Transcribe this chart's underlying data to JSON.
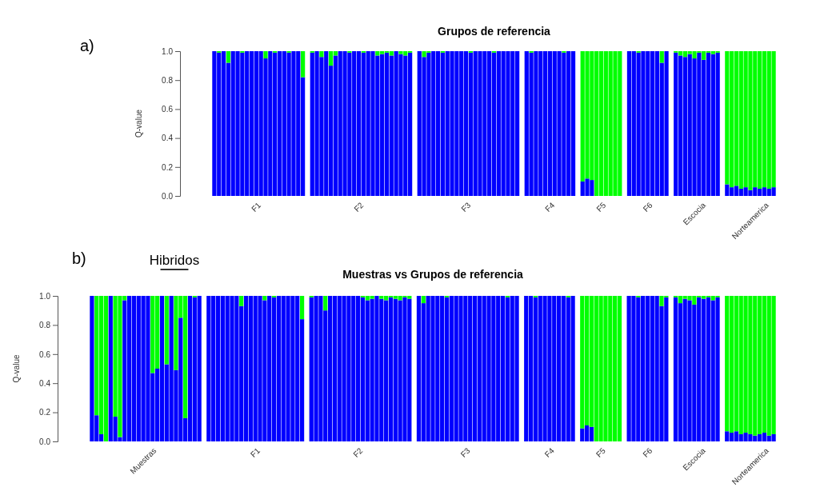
{
  "chart_data": [
    {
      "type": "bar",
      "stacked": true,
      "title": "Grupos de referencia",
      "ylabel": "Q-value",
      "annotations": [
        "a)"
      ],
      "ylim": [
        0,
        1
      ],
      "yticks": [
        {
          "value": 0,
          "label": "0.0"
        },
        {
          "value": 0.2,
          "label": "0.2"
        },
        {
          "value": 0.4,
          "label": "0.4"
        },
        {
          "value": 0.6,
          "label": "0.6"
        },
        {
          "value": 0.8,
          "label": "0.8"
        },
        {
          "value": 1,
          "label": "1.0"
        }
      ],
      "categories": [
        null,
        null,
        null,
        null,
        null,
        null,
        null,
        null,
        null,
        "F1",
        null,
        null,
        null,
        null,
        null,
        null,
        null,
        null,
        null,
        null,
        null,
        null,
        null,
        null,
        null,
        null,
        null,
        null,
        null,
        null,
        null,
        "F2",
        null,
        null,
        null,
        null,
        null,
        null,
        null,
        null,
        null,
        null,
        null,
        null,
        null,
        null,
        null,
        null,
        null,
        null,
        null,
        null,
        null,
        null,
        "F3",
        null,
        null,
        null,
        null,
        null,
        null,
        null,
        null,
        null,
        null,
        null,
        null,
        null,
        null,
        null,
        null,
        null,
        "F4",
        null,
        null,
        null,
        null,
        null,
        null,
        null,
        null,
        null,
        null,
        "F5",
        null,
        null,
        null,
        null,
        null,
        null,
        null,
        null,
        null,
        "F6",
        null,
        null,
        null,
        null,
        null,
        null,
        null,
        null,
        null,
        "Escocia",
        null,
        null,
        null,
        null,
        null,
        null,
        null,
        null,
        null,
        null,
        null,
        "Norteamerica",
        null,
        null,
        null,
        null,
        null
      ],
      "series": [
        {
          "color": "#0000ff",
          "values": [
            1,
            0.99,
            1,
            0.92,
            1,
            1,
            0.99,
            1,
            1,
            1,
            1,
            0.95,
            1,
            0.99,
            1,
            1,
            0.99,
            1,
            1,
            0.82,
            null,
            0.99,
            1,
            0.96,
            1,
            0.9,
            0.97,
            1,
            1,
            0.99,
            1,
            1,
            0.99,
            1,
            1,
            0.97,
            0.98,
            0.99,
            0.97,
            1,
            0.98,
            0.97,
            0.99,
            null,
            1,
            0.96,
            0.99,
            1,
            1,
            0.99,
            1,
            1,
            1,
            1,
            1,
            0.99,
            1,
            1,
            1,
            1,
            0.99,
            1,
            1,
            1,
            1,
            1,
            null,
            1,
            0.99,
            1,
            1,
            1,
            1,
            1,
            1,
            0.99,
            1,
            1,
            null,
            0.1,
            0.12,
            0.11,
            0,
            0,
            0,
            0,
            0,
            0,
            null,
            1,
            1,
            0.99,
            1,
            1,
            1,
            1,
            0.92,
            1,
            null,
            0.99,
            0.97,
            0.96,
            0.98,
            0.95,
            0.99,
            0.94,
            0.99,
            0.98,
            0.99,
            null,
            0.08,
            0.06,
            0.07,
            0.05,
            0.06,
            0.04,
            0.06,
            0.05,
            0.06,
            0.05,
            0.06
          ]
        },
        {
          "color": "#00ff00",
          "values": [
            0,
            0.01,
            0,
            0.08,
            0,
            0,
            0.01,
            0,
            0,
            0,
            0,
            0.05,
            0,
            0.01,
            0,
            0,
            0.01,
            0,
            0,
            0.18,
            null,
            0.01,
            0,
            0.04,
            0,
            0.1,
            0.03,
            0,
            0,
            0.01,
            0,
            0,
            0.01,
            0,
            0,
            0.03,
            0.02,
            0.01,
            0.03,
            0,
            0.02,
            0.03,
            0.01,
            null,
            0,
            0.04,
            0.01,
            0,
            0,
            0.01,
            0,
            0,
            0,
            0,
            0,
            0.01,
            0,
            0,
            0,
            0,
            0.01,
            0,
            0,
            0,
            0,
            0,
            null,
            0,
            0.01,
            0,
            0,
            0,
            0,
            0,
            0,
            0.01,
            0,
            0,
            null,
            0.9,
            0.88,
            0.89,
            1,
            1,
            1,
            1,
            1,
            1,
            null,
            0,
            0,
            0.01,
            0,
            0,
            0,
            0,
            0.08,
            0,
            null,
            0.01,
            0.03,
            0.04,
            0.02,
            0.05,
            0.01,
            0.06,
            0.01,
            0.02,
            0.01,
            null,
            0.92,
            0.94,
            0.93,
            0.95,
            0.94,
            0.96,
            0.94,
            0.95,
            0.94,
            0.95,
            0.94
          ]
        }
      ]
    },
    {
      "type": "bar",
      "stacked": true,
      "title": "Muestras vs Grupos de referencia",
      "ylabel": "Q-value",
      "annotations": [
        "b)",
        "Hibridos"
      ],
      "ylim": [
        0,
        1
      ],
      "yticks": [
        {
          "value": 0,
          "label": "0.0"
        },
        {
          "value": 0.2,
          "label": "0.2"
        },
        {
          "value": 0.4,
          "label": "0.4"
        },
        {
          "value": 0.6,
          "label": "0.6"
        },
        {
          "value": 0.8,
          "label": "0.8"
        },
        {
          "value": 1,
          "label": "1.0"
        }
      ],
      "categories": [
        null,
        null,
        null,
        null,
        null,
        null,
        null,
        null,
        null,
        null,
        null,
        "Muestras",
        null,
        null,
        null,
        null,
        null,
        null,
        null,
        null,
        null,
        null,
        null,
        null,
        null,
        null,
        null,
        null,
        null,
        null,
        null,
        null,
        null,
        null,
        null,
        "F1",
        null,
        null,
        null,
        null,
        null,
        null,
        null,
        null,
        null,
        null,
        null,
        null,
        null,
        null,
        null,
        null,
        null,
        null,
        null,
        null,
        null,
        "F2",
        null,
        null,
        null,
        null,
        null,
        null,
        null,
        null,
        null,
        null,
        null,
        null,
        null,
        null,
        null,
        null,
        null,
        null,
        null,
        null,
        null,
        null,
        "F3",
        null,
        null,
        null,
        null,
        null,
        null,
        null,
        null,
        null,
        null,
        null,
        null,
        null,
        null,
        null,
        null,
        null,
        "F4",
        null,
        null,
        null,
        null,
        null,
        null,
        null,
        null,
        null,
        null,
        "F5",
        null,
        null,
        null,
        null,
        null,
        null,
        null,
        null,
        null,
        "F6",
        null,
        null,
        null,
        null,
        null,
        null,
        null,
        null,
        null,
        "Escocia",
        null,
        null,
        null,
        null,
        null,
        null,
        null,
        null,
        null,
        null,
        null,
        "Norteamerica",
        null,
        null,
        null,
        null,
        null
      ],
      "series": [
        {
          "color": "#0000ff",
          "values": [
            1,
            0.18,
            0.05,
            0,
            1,
            0.17,
            0.03,
            0.97,
            1,
            1,
            1,
            1,
            1,
            0.47,
            0.5,
            1,
            0.53,
            1,
            0.49,
            0.85,
            0.16,
            1,
            0.99,
            1,
            null,
            1,
            1,
            1,
            1,
            1,
            1,
            1,
            0.93,
            1,
            1,
            1,
            1,
            0.97,
            1,
            0.99,
            1,
            1,
            1,
            1,
            1,
            0.84,
            null,
            0.99,
            1,
            1,
            0.9,
            1,
            1,
            1,
            1,
            1,
            1,
            1,
            0.99,
            0.97,
            0.98,
            1,
            0.98,
            0.97,
            0.99,
            0.98,
            0.97,
            0.99,
            0.98,
            null,
            1,
            0.95,
            1,
            1,
            1,
            1,
            0.99,
            1,
            1,
            1,
            1,
            1,
            1,
            1,
            1,
            1,
            1,
            1,
            1,
            0.99,
            1,
            1,
            null,
            1,
            1,
            0.99,
            1,
            1,
            1,
            1,
            1,
            1,
            0.99,
            1,
            null,
            0.09,
            0.11,
            0.1,
            0,
            0,
            0,
            0,
            0,
            0,
            null,
            1,
            1,
            0.99,
            1,
            1,
            1,
            1,
            0.93,
            0.99,
            null,
            0.99,
            0.95,
            0.98,
            0.97,
            0.94,
            0.99,
            0.98,
            0.99,
            0.97,
            0.99,
            null,
            0.07,
            0.06,
            0.07,
            0.05,
            0.06,
            0.05,
            0.04,
            0.05,
            0.06,
            0.04,
            0.05
          ]
        },
        {
          "color": "#00ff00",
          "values": [
            0,
            0.82,
            0.95,
            1,
            0,
            0.83,
            0.97,
            0.03,
            0,
            0,
            0,
            0,
            0,
            0.53,
            0.5,
            0,
            0.47,
            0,
            0.51,
            0.15,
            0.84,
            0,
            0.01,
            0,
            null,
            0,
            0,
            0,
            0,
            0,
            0,
            0,
            0.07,
            0,
            0,
            0,
            0,
            0.03,
            0,
            0.01,
            0,
            0,
            0,
            0,
            0,
            0.16,
            null,
            0.01,
            0,
            0,
            0.1,
            0,
            0,
            0,
            0,
            0,
            0,
            0,
            0.01,
            0.03,
            0.02,
            0,
            0.02,
            0.03,
            0.01,
            0.02,
            0.03,
            0.01,
            0.02,
            null,
            0,
            0.05,
            0,
            0,
            0,
            0,
            0.01,
            0,
            0,
            0,
            0,
            0,
            0,
            0,
            0,
            0,
            0,
            0,
            0,
            0.01,
            0,
            0,
            null,
            0,
            0,
            0.01,
            0,
            0,
            0,
            0,
            0,
            0,
            0.01,
            0,
            null,
            0.91,
            0.89,
            0.9,
            1,
            1,
            1,
            1,
            1,
            1,
            null,
            0,
            0,
            0.01,
            0,
            0,
            0,
            0,
            0.07,
            0.01,
            null,
            0.01,
            0.05,
            0.02,
            0.03,
            0.06,
            0.01,
            0.02,
            0.01,
            0.03,
            0.01,
            null,
            0.93,
            0.94,
            0.93,
            0.95,
            0.94,
            0.95,
            0.96,
            0.95,
            0.94,
            0.96,
            0.95
          ]
        }
      ]
    }
  ]
}
